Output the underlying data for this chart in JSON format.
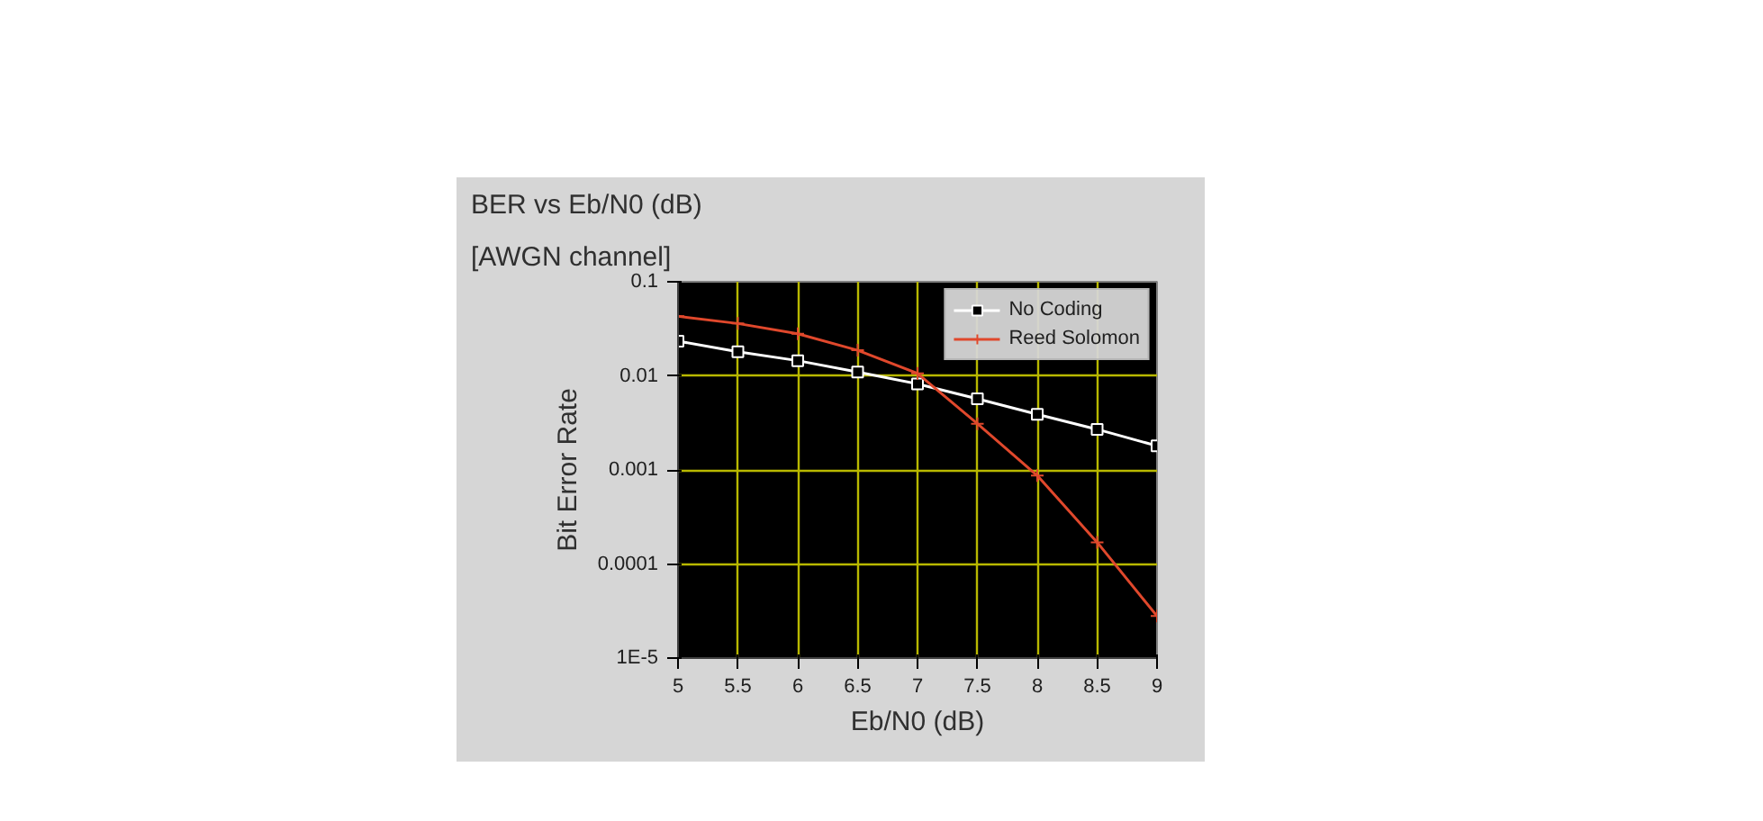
{
  "chart_data": {
    "type": "line",
    "title": "BER vs Eb/N0 (dB)",
    "subtitle": "[AWGN channel]",
    "xlabel": "Eb/N0 (dB)",
    "ylabel": "Bit Error Rate",
    "x": [
      5,
      5.5,
      6,
      6.5,
      7,
      7.5,
      8,
      8.5,
      9
    ],
    "series": [
      {
        "name": "No Coding",
        "color": "#ffffff",
        "marker": "square",
        "values": [
          0.0234,
          0.018,
          0.0145,
          0.011,
          0.0082,
          0.0057,
          0.0039,
          0.0027,
          0.0018
        ]
      },
      {
        "name": "Reed Solomon",
        "color": "#e0482c",
        "marker": "cross",
        "values": [
          0.043,
          0.036,
          0.028,
          0.0187,
          0.0106,
          0.0031,
          0.00087,
          0.00017,
          2.8e-05
        ]
      }
    ],
    "log": "y",
    "xlim": [
      5,
      9
    ],
    "ylim": [
      1e-05,
      0.1
    ],
    "xticks": [
      5,
      5.5,
      6,
      6.5,
      7,
      7.5,
      8,
      8.5,
      9
    ],
    "yticks": [
      {
        "value": 1e-05,
        "label": "1E-5"
      },
      0.0001,
      0.001,
      0.01,
      0.1
    ],
    "grid": true,
    "legend": "top right"
  }
}
